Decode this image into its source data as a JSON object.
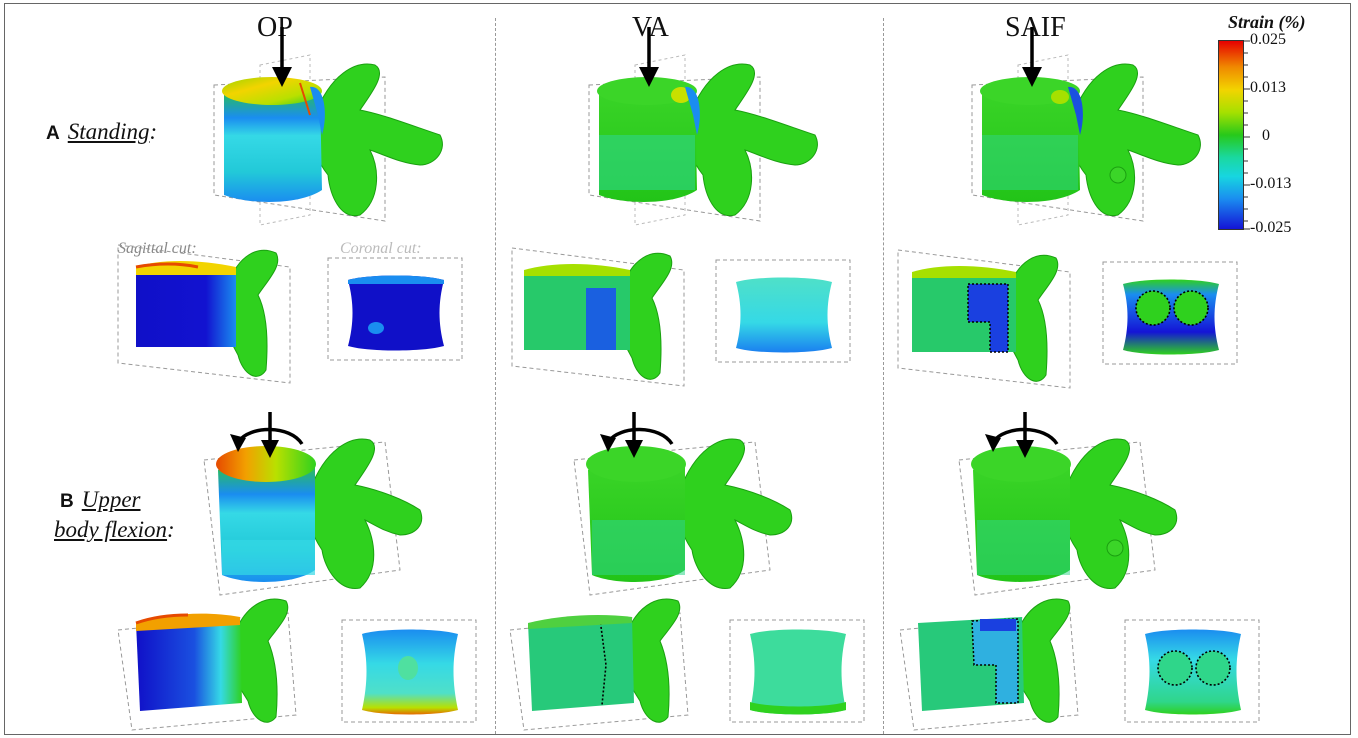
{
  "columns": [
    "OP",
    "VA",
    "SAIF"
  ],
  "rows": [
    {
      "letter": "A",
      "label": "Standing",
      "suffix": ":"
    },
    {
      "letter": "B",
      "label_line1": "Upper",
      "label_line2": "body flexion",
      "suffix": ":"
    }
  ],
  "cut_labels": {
    "sagittal": "Sagittal cut:",
    "coronal": "Coronal cut:"
  },
  "legend": {
    "title": "Strain (%)",
    "ticks": [
      "0.025",
      "0.013",
      "0",
      "-0.013",
      "-0.025"
    ],
    "colors": {
      "max": "#e60000",
      "high": "#f2d400",
      "zero": "#27c91a",
      "low": "#17d6e0",
      "min": "#1414d6"
    }
  },
  "colors": {
    "bone": "#2fd11e",
    "strain_max": "#e64a00",
    "strain_high": "#f2d400",
    "strain_low": "#35d9e6",
    "strain_min": "#1010c8"
  },
  "icons": [
    "load-arrow-icon",
    "flexion-moment-icon"
  ]
}
